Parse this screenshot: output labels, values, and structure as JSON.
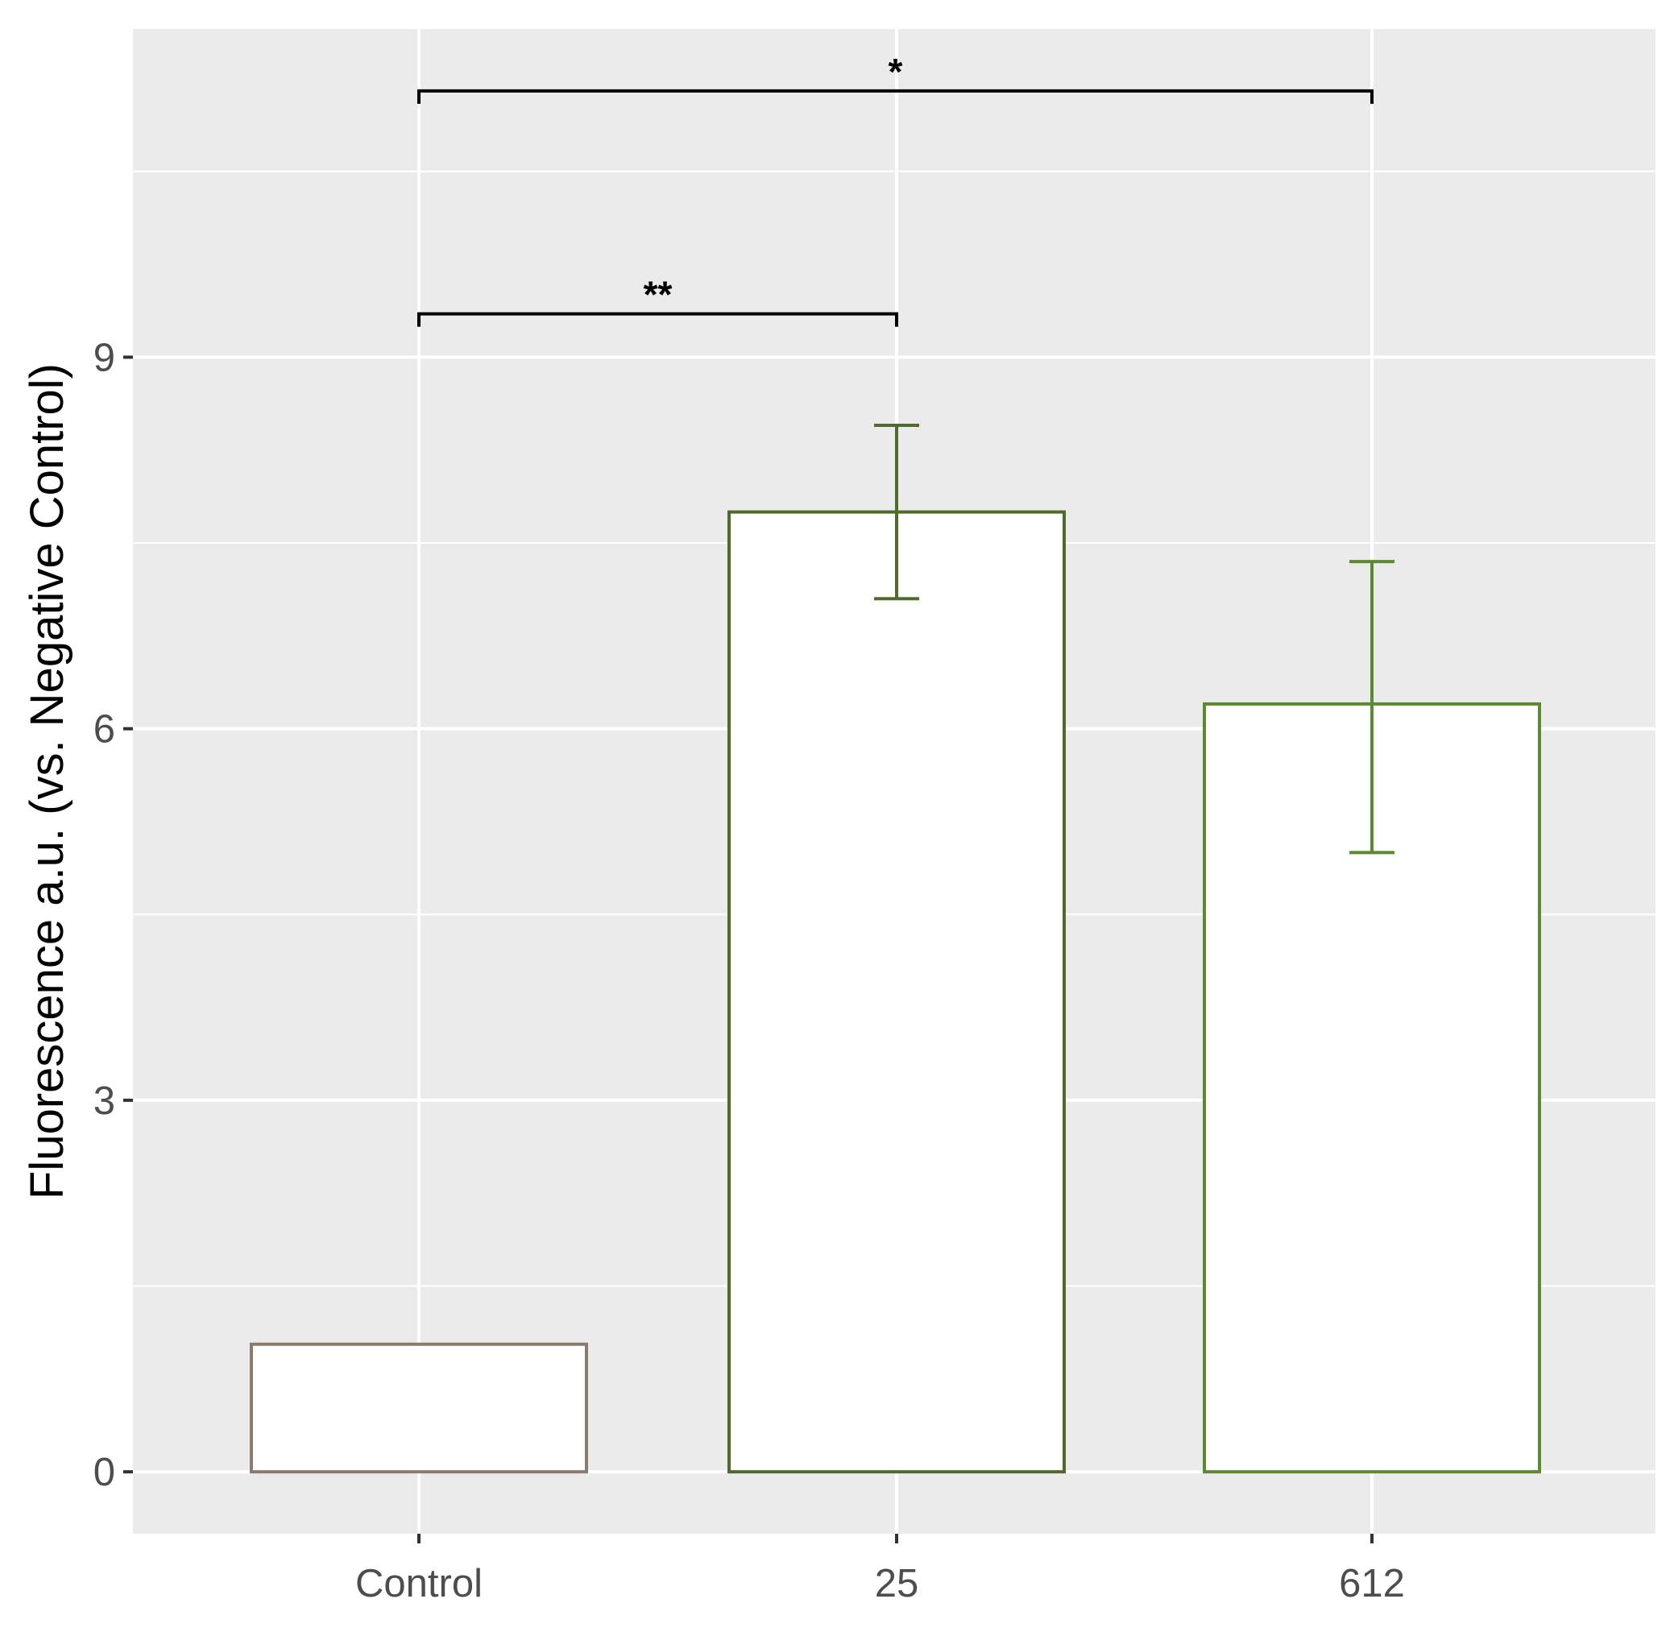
{
  "chart_data": {
    "type": "bar",
    "title": "",
    "xlabel": "",
    "ylabel": "Fluorescence a.u. (vs. Negative Control)",
    "categories": [
      "Control",
      "25",
      "612"
    ],
    "values": [
      1.03,
      7.75,
      6.2
    ],
    "error_low": [
      null,
      7.05,
      5.0
    ],
    "error_high": [
      null,
      8.45,
      7.35
    ],
    "bar_outline_colors": [
      "#8b7b6e",
      "#4e6b2c",
      "#5c8a2e"
    ],
    "bar_fill": "#ffffff",
    "panel_background": "#ebebeb",
    "gridline_color": "#ffffff",
    "ylim": [
      -0.5,
      11.65
    ],
    "yticks": [
      0,
      3,
      6,
      9
    ],
    "ytick_labels": [
      "0",
      "3",
      "6",
      "9"
    ],
    "grid": true,
    "significance": [
      {
        "from": "Control",
        "to": "25",
        "label": "**",
        "y": 9.35
      },
      {
        "from": "Control",
        "to": "612",
        "label": "*",
        "y": 11.15
      }
    ]
  }
}
